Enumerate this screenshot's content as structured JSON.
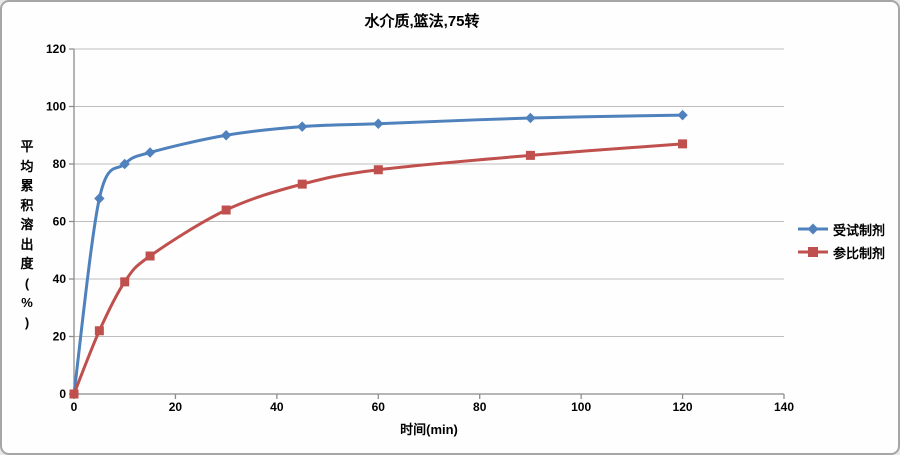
{
  "window": {
    "background": "#FEFEFE",
    "border_color": "#A6A6A6"
  },
  "chart_data": {
    "type": "line",
    "title": "水介质,篮法,75转",
    "xlabel": "时间(min)",
    "ylabel": "平均累积溶出度(%)",
    "x": [
      0,
      5,
      10,
      15,
      30,
      45,
      60,
      90,
      120
    ],
    "series": [
      {
        "name": "受试制剂",
        "color": "#4F81BD",
        "marker": "diamond",
        "values": [
          0,
          68,
          80,
          84,
          90,
          93,
          94,
          96,
          97
        ]
      },
      {
        "name": "参比制剂",
        "color": "#C0504D",
        "marker": "square",
        "values": [
          0,
          22,
          39,
          48,
          64,
          73,
          78,
          83,
          87
        ]
      }
    ],
    "xlim": [
      0,
      140
    ],
    "ylim": [
      0,
      120
    ],
    "x_ticks": [
      0,
      20,
      40,
      60,
      80,
      100,
      120,
      140
    ],
    "y_ticks": [
      0,
      20,
      40,
      60,
      80,
      100,
      120
    ],
    "grid": "horizontal",
    "legend_position": "right",
    "smooth": true,
    "colors": {
      "gridline": "#BDBDBD",
      "axis": "#8C8C8C",
      "text": "#000000"
    }
  }
}
